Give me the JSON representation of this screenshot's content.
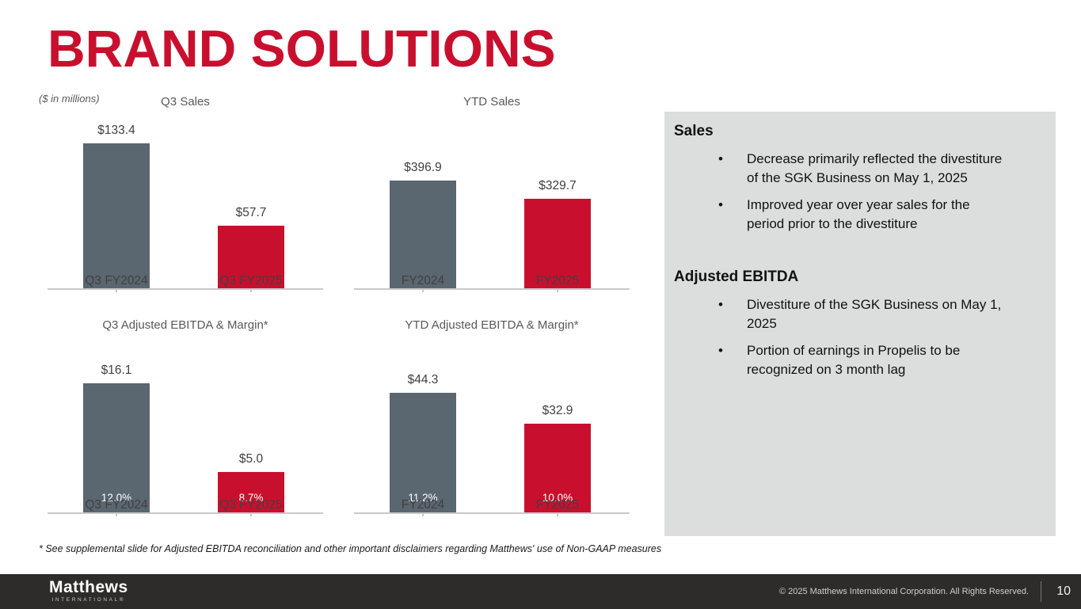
{
  "slide": {
    "title": "BRAND SOLUTIONS",
    "units_note": "($ in millions)",
    "footnote": "* See supplemental slide for Adjusted EBITDA reconciliation and other important disclaimers regarding Matthews' use of Non-GAAP measures"
  },
  "colors": {
    "brand_red": "#C8102E",
    "bar_gray": "#5A6670",
    "panel_bg": "#DCDEDD",
    "footer_bg": "#2D2C2B"
  },
  "chart_data": [
    {
      "id": "q3-sales",
      "type": "bar",
      "title": "Q3 Sales",
      "units": "$ in millions",
      "categories": [
        "Q3 FY2024",
        "Q3 FY2025"
      ],
      "values": [
        133.4,
        57.7
      ],
      "value_labels": [
        "$133.4",
        "$57.7"
      ],
      "bar_colors": [
        "#5A6670",
        "#C8102E"
      ],
      "grid": false,
      "legend": false
    },
    {
      "id": "ytd-sales",
      "type": "bar",
      "title": "YTD Sales",
      "units": "$ in millions",
      "categories": [
        "FY2024",
        "FY2025"
      ],
      "values": [
        396.9,
        329.7
      ],
      "value_labels": [
        "$396.9",
        "$329.7"
      ],
      "bar_colors": [
        "#5A6670",
        "#C8102E"
      ],
      "grid": false,
      "legend": false
    },
    {
      "id": "q3-adjusted-ebitda",
      "type": "bar",
      "title": "Q3 Adjusted EBITDA & Margin*",
      "units": "$ in millions",
      "categories": [
        "Q3 FY2024",
        "Q3 FY2025"
      ],
      "values": [
        16.1,
        5.0
      ],
      "value_labels": [
        "$16.1",
        "$5.0"
      ],
      "margin_labels": [
        "12.0%",
        "8.7%"
      ],
      "bar_colors": [
        "#5A6670",
        "#C8102E"
      ],
      "grid": false,
      "legend": false
    },
    {
      "id": "ytd-adjusted-ebitda",
      "type": "bar",
      "title": "YTD Adjusted EBITDA & Margin*",
      "units": "$ in millions",
      "categories": [
        "FY2024",
        "FY2025"
      ],
      "values": [
        44.3,
        32.9
      ],
      "value_labels": [
        "$44.3",
        "$32.9"
      ],
      "margin_labels": [
        "11.2%",
        "10.0%"
      ],
      "bar_colors": [
        "#5A6670",
        "#C8102E"
      ],
      "grid": false,
      "legend": false
    }
  ],
  "commentary": {
    "sections": [
      {
        "heading": "Sales",
        "bullets": [
          "Decrease primarily reflected the divestiture\nof the SGK Business on May 1, 2025",
          "Improved year over year sales for the\nperiod prior to the divestiture"
        ]
      },
      {
        "heading": "Adjusted EBITDA",
        "bullets": [
          "Divestiture of the SGK Business on May 1,\n2025",
          "Portion of earnings in Propelis to be\nrecognized on 3 month lag"
        ]
      }
    ],
    "bullet_glyph": "•"
  },
  "footer": {
    "logo_primary": "Matthews",
    "logo_secondary": "INTERNATIONAL®",
    "copyright": "© 2025 Matthews International Corporation. All Rights Reserved.",
    "page_number": "10"
  }
}
